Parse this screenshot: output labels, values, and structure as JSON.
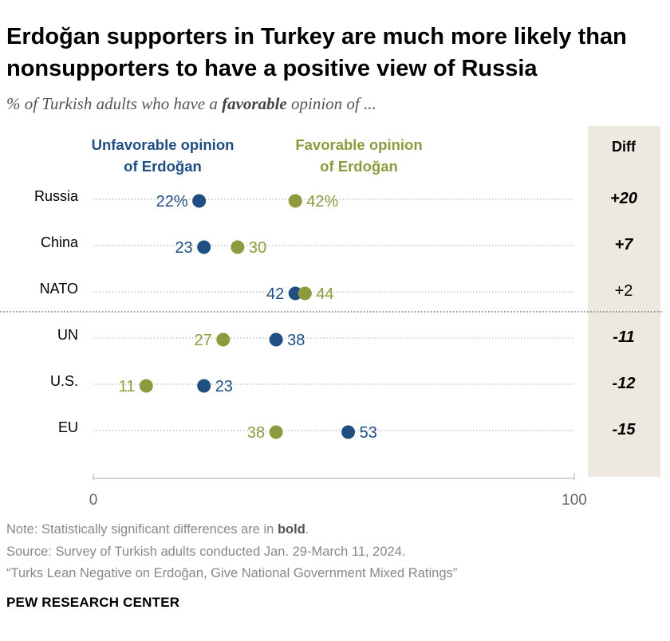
{
  "title": "Erdoğan supporters in Turkey are much more likely than nonsupporters to have a positive view of Russia",
  "subtitle_pre": "% of Turkish adults who have a ",
  "subtitle_bold": "favorable",
  "subtitle_post": " opinion of ...",
  "colors": {
    "unfavorable": "#1f4e82",
    "favorable": "#8f9a3e",
    "diff_bg": "#ede9e1",
    "dots": "#b9b9b9"
  },
  "chart_data": {
    "type": "dot",
    "xlim": [
      0,
      100
    ],
    "x_ticks": [
      "0",
      "100"
    ],
    "diff_header": "Diff",
    "series": [
      {
        "name": "Unfavorable opinion of Erdoğan",
        "label_lines": [
          "Unfavorable opinion",
          "of Erdoğan"
        ]
      },
      {
        "name": "Favorable opinion of Erdoğan",
        "label_lines": [
          "Favorable opinion",
          "of Erdoğan"
        ]
      }
    ],
    "rows": [
      {
        "category": "Russia",
        "unfavorable": 22,
        "favorable": 42,
        "unfav_label": "22%",
        "fav_label": "42%",
        "diff": "+20",
        "significant": true
      },
      {
        "category": "China",
        "unfavorable": 23,
        "favorable": 30,
        "unfav_label": "23",
        "fav_label": "30",
        "diff": "+7",
        "significant": true
      },
      {
        "category": "NATO",
        "unfavorable": 42,
        "favorable": 44,
        "unfav_label": "42",
        "fav_label": "44",
        "diff": "+2",
        "significant": false
      },
      {
        "category": "UN",
        "unfavorable": 38,
        "favorable": 27,
        "unfav_label": "38",
        "fav_label": "27",
        "diff": "-11",
        "significant": true
      },
      {
        "category": "U.S.",
        "unfavorable": 23,
        "favorable": 11,
        "unfav_label": "23",
        "fav_label": "11",
        "diff": "-12",
        "significant": true
      },
      {
        "category": "EU",
        "unfavorable": 53,
        "favorable": 38,
        "unfav_label": "53",
        "fav_label": "38",
        "diff": "-15",
        "significant": true
      }
    ]
  },
  "note_pre": "Note: Statistically significant differences are in ",
  "note_bold": "bold",
  "note_post": ".",
  "source": "Source: Survey of Turkish adults conducted Jan. 29-March 11, 2024.",
  "report": "“Turks Lean Negative on Erdoğan, Give National Government Mixed Ratings”",
  "organization": "PEW RESEARCH CENTER"
}
